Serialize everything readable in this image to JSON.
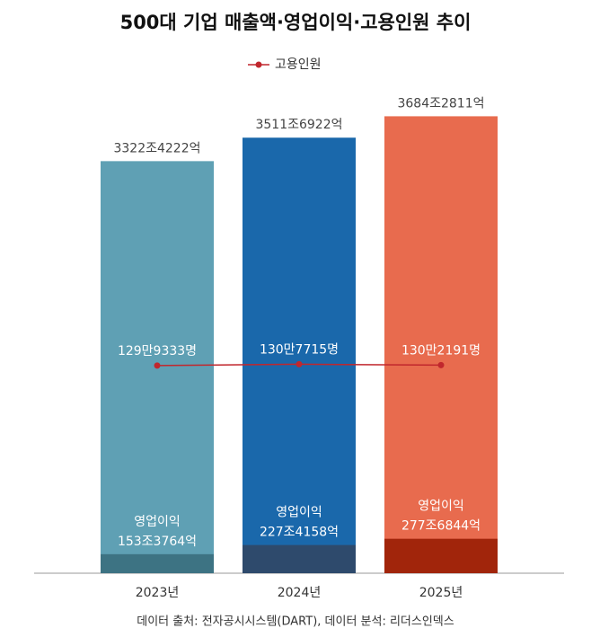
{
  "chart_data": {
    "type": "bar",
    "title": "500대 기업 매출액·영업이익·고용인원 추이",
    "categories": [
      "2023년",
      "2024년",
      "2025년"
    ],
    "series": [
      {
        "colors": [
          "#5fa0b4",
          "#1a68ab",
          "#e86b4e"
        ],
        "values": [
          3322.4222,
          3511.6922,
          3684.2811
        ],
        "value_labels": [
          "3322조4222억",
          "3511조6922억",
          "3684조2811억"
        ]
      },
      {
        "name": "영업이익",
        "colors": [
          "#3d7383",
          "#2e4a6c",
          "#a1250b"
        ],
        "values": [
          153.3764,
          227.4158,
          277.6844
        ],
        "value_labels": [
          "153조3764억",
          "227조4158억",
          "277조6844억"
        ]
      },
      {
        "name": "고용인원",
        "type": "line",
        "axis": "y2",
        "color": "#c1272d",
        "values": [
          1299333,
          1307715,
          1302191
        ],
        "value_labels": [
          "129만9333명",
          "130만7715명",
          "130만2191명"
        ]
      }
    ],
    "ylim": [
      0,
      4600
    ],
    "y2lim": [
      0,
      3570000
    ],
    "source": "데이터 출처: 전자공시시스템(DART), 데이터 분석: 리더스인덱스"
  }
}
